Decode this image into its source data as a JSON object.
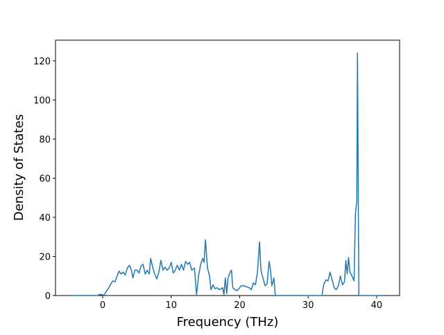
{
  "chart_data": {
    "type": "line",
    "xlabel": "Frequency (THz)",
    "ylabel": "Density of States",
    "xlim": [
      -6.89,
      43.35
    ],
    "ylim": [
      0,
      130.6
    ],
    "xticks": [
      0,
      10,
      20,
      30,
      40
    ],
    "yticks": [
      0,
      20,
      40,
      60,
      80,
      100,
      120
    ],
    "series": [
      {
        "color": "#1f77b4",
        "x": [
          -4.6,
          -0.8,
          -0.5,
          0,
          0.2,
          0.5,
          0.9,
          1.2,
          1.5,
          1.8,
          2.1,
          2.4,
          2.7,
          3,
          3.3,
          3.6,
          3.9,
          4.2,
          4.4,
          4.7,
          5,
          5.3,
          5.6,
          5.9,
          6.2,
          6.5,
          6.8,
          7,
          7.3,
          7.6,
          7.9,
          8.2,
          8.5,
          8.8,
          9.1,
          9.4,
          9.7,
          10,
          10.3,
          10.6,
          10.9,
          11.2,
          11.5,
          11.8,
          12.1,
          12.4,
          12.7,
          13,
          13.4,
          13.7,
          14,
          14.3,
          14.6,
          14.8,
          15,
          15.3,
          15.6,
          15.8,
          16.1,
          16.4,
          16.7,
          17,
          17.3,
          17.5,
          17.7,
          17.9,
          18.1,
          18.3,
          18.6,
          18.8,
          19,
          19.3,
          19.6,
          19.9,
          20.2,
          20.6,
          21,
          21.4,
          21.7,
          22,
          22.3,
          22.6,
          22.9,
          23.1,
          23.4,
          23.7,
          24,
          24.3,
          24.5,
          24.7,
          25,
          25.2,
          32,
          32.3,
          32.6,
          32.9,
          33.2,
          33.5,
          33.8,
          34.1,
          34.4,
          34.7,
          35,
          35.3,
          35.5,
          35.7,
          35.9,
          36.1,
          36.4,
          36.7,
          36.9,
          37.1,
          37.2,
          37.4,
          41
        ],
        "values": [
          0,
          0,
          0.5,
          0.5,
          0,
          2,
          4,
          6,
          7.5,
          7,
          10,
          12.5,
          11,
          12,
          10.5,
          14,
          15.5,
          13,
          9,
          13,
          13,
          11.5,
          15,
          16,
          11,
          13,
          11,
          19,
          14.5,
          11,
          8.5,
          12,
          18,
          13,
          14.5,
          13,
          14,
          17,
          11.5,
          13,
          15.5,
          13,
          16,
          13,
          17.5,
          16,
          17,
          13,
          14,
          0.5,
          10,
          16,
          19,
          17,
          28.5,
          14,
          10,
          3,
          5.5,
          3.5,
          4,
          3,
          3.5,
          4,
          0.5,
          9,
          1,
          9,
          12,
          13,
          4,
          3,
          2.5,
          3.5,
          5,
          5,
          4.5,
          4,
          3,
          6.5,
          5.5,
          12,
          27.5,
          13,
          9,
          5,
          6,
          17.5,
          13,
          5,
          9,
          0,
          0,
          6,
          8,
          7.5,
          12,
          8,
          4,
          3,
          5,
          10,
          5.5,
          7,
          18,
          11,
          19.5,
          12,
          10,
          7.5,
          42,
          48,
          124,
          0,
          0
        ]
      }
    ]
  }
}
